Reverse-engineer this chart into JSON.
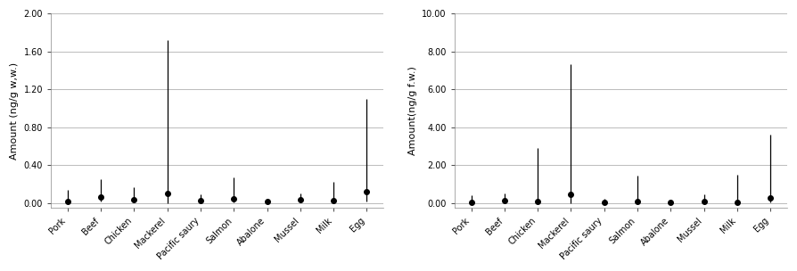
{
  "categories": [
    "Pork",
    "Beef",
    "Chicken",
    "Mackerel",
    "Pacific saury",
    "Salmon",
    "Abalone",
    "Mussel",
    "Milk",
    "Egg"
  ],
  "chart1": {
    "ylabel": "Amount (ng/g w,w.)",
    "ylim": [
      -0.05,
      2.0
    ],
    "yticks": [
      0.0,
      0.4,
      0.8,
      1.2,
      1.6,
      2.0
    ],
    "ytick_labels": [
      "0.00",
      "0.40",
      "0.80",
      "1.20",
      "1.60",
      "2.00"
    ],
    "means": [
      0.02,
      0.07,
      0.04,
      0.1,
      0.03,
      0.05,
      0.02,
      0.04,
      0.03,
      0.12
    ],
    "upper_errors": [
      0.12,
      0.18,
      0.13,
      1.62,
      0.06,
      0.22,
      0.01,
      0.06,
      0.2,
      0.98
    ],
    "lower_errors": [
      0.02,
      0.05,
      0.03,
      0.1,
      0.02,
      0.04,
      0.01,
      0.03,
      0.02,
      0.1
    ]
  },
  "chart2": {
    "ylabel": "Amount(ng/g f.w.)",
    "ylim": [
      -0.25,
      10.0
    ],
    "yticks": [
      0.0,
      2.0,
      4.0,
      6.0,
      8.0,
      10.0
    ],
    "ytick_labels": [
      "0.00",
      "2.00",
      "4.00",
      "6.00",
      "8.00",
      "10.00"
    ],
    "means": [
      0.05,
      0.12,
      0.1,
      0.46,
      0.06,
      0.1,
      0.03,
      0.08,
      0.06,
      0.26
    ],
    "upper_errors": [
      0.38,
      0.38,
      2.82,
      6.88,
      0.16,
      1.36,
      0.04,
      0.4,
      1.44,
      3.34
    ],
    "lower_errors": [
      0.04,
      0.1,
      0.08,
      0.44,
      0.05,
      0.08,
      0.02,
      0.06,
      0.05,
      0.22
    ]
  },
  "marker_color": "#000000",
  "line_color": "#000000",
  "grid_color": "#bbbbbb",
  "bg_color": "#ffffff",
  "tick_labelsize": 7,
  "ylabel_fontsize": 8,
  "xlabel_rotation": 45
}
